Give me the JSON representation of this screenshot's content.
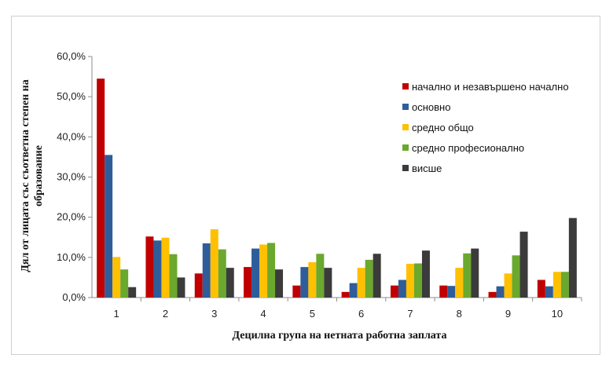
{
  "chart_data": {
    "type": "bar",
    "xlabel": "Децилна група на нетната работна заплата",
    "ylabel_lines": [
      "Дял от лицата със съответна степен на",
      "образование"
    ],
    "categories": [
      "1",
      "2",
      "3",
      "4",
      "5",
      "6",
      "7",
      "8",
      "9",
      "10"
    ],
    "ylim": [
      0,
      60
    ],
    "yticks": [
      "0,0%",
      "10,0%",
      "20,0%",
      "30,0%",
      "40,0%",
      "50,0%",
      "60,0%"
    ],
    "grid": false,
    "legend_position": "top-right",
    "series": [
      {
        "name": "начално и незавършено начално",
        "color": "#c00000",
        "values": [
          54.5,
          15.2,
          6.0,
          7.6,
          3.0,
          1.4,
          3.0,
          3.0,
          1.4,
          4.4
        ]
      },
      {
        "name": "основно",
        "color": "#2e5d9a",
        "values": [
          35.5,
          14.2,
          13.5,
          12.2,
          7.6,
          3.6,
          4.4,
          2.9,
          2.8,
          2.8
        ]
      },
      {
        "name": "средно общо",
        "color": "#ffc000",
        "values": [
          10.1,
          14.9,
          17.0,
          13.2,
          8.8,
          7.4,
          8.4,
          7.4,
          6.0,
          6.4
        ]
      },
      {
        "name": "средно професионално",
        "color": "#6aa82e",
        "values": [
          7.0,
          10.8,
          12.0,
          13.6,
          10.9,
          9.4,
          8.5,
          11.0,
          10.5,
          6.4
        ]
      },
      {
        "name": "висше",
        "color": "#3b3b3b",
        "values": [
          2.6,
          5.0,
          7.4,
          7.0,
          7.4,
          10.9,
          11.7,
          12.2,
          16.4,
          19.8
        ]
      }
    ]
  }
}
